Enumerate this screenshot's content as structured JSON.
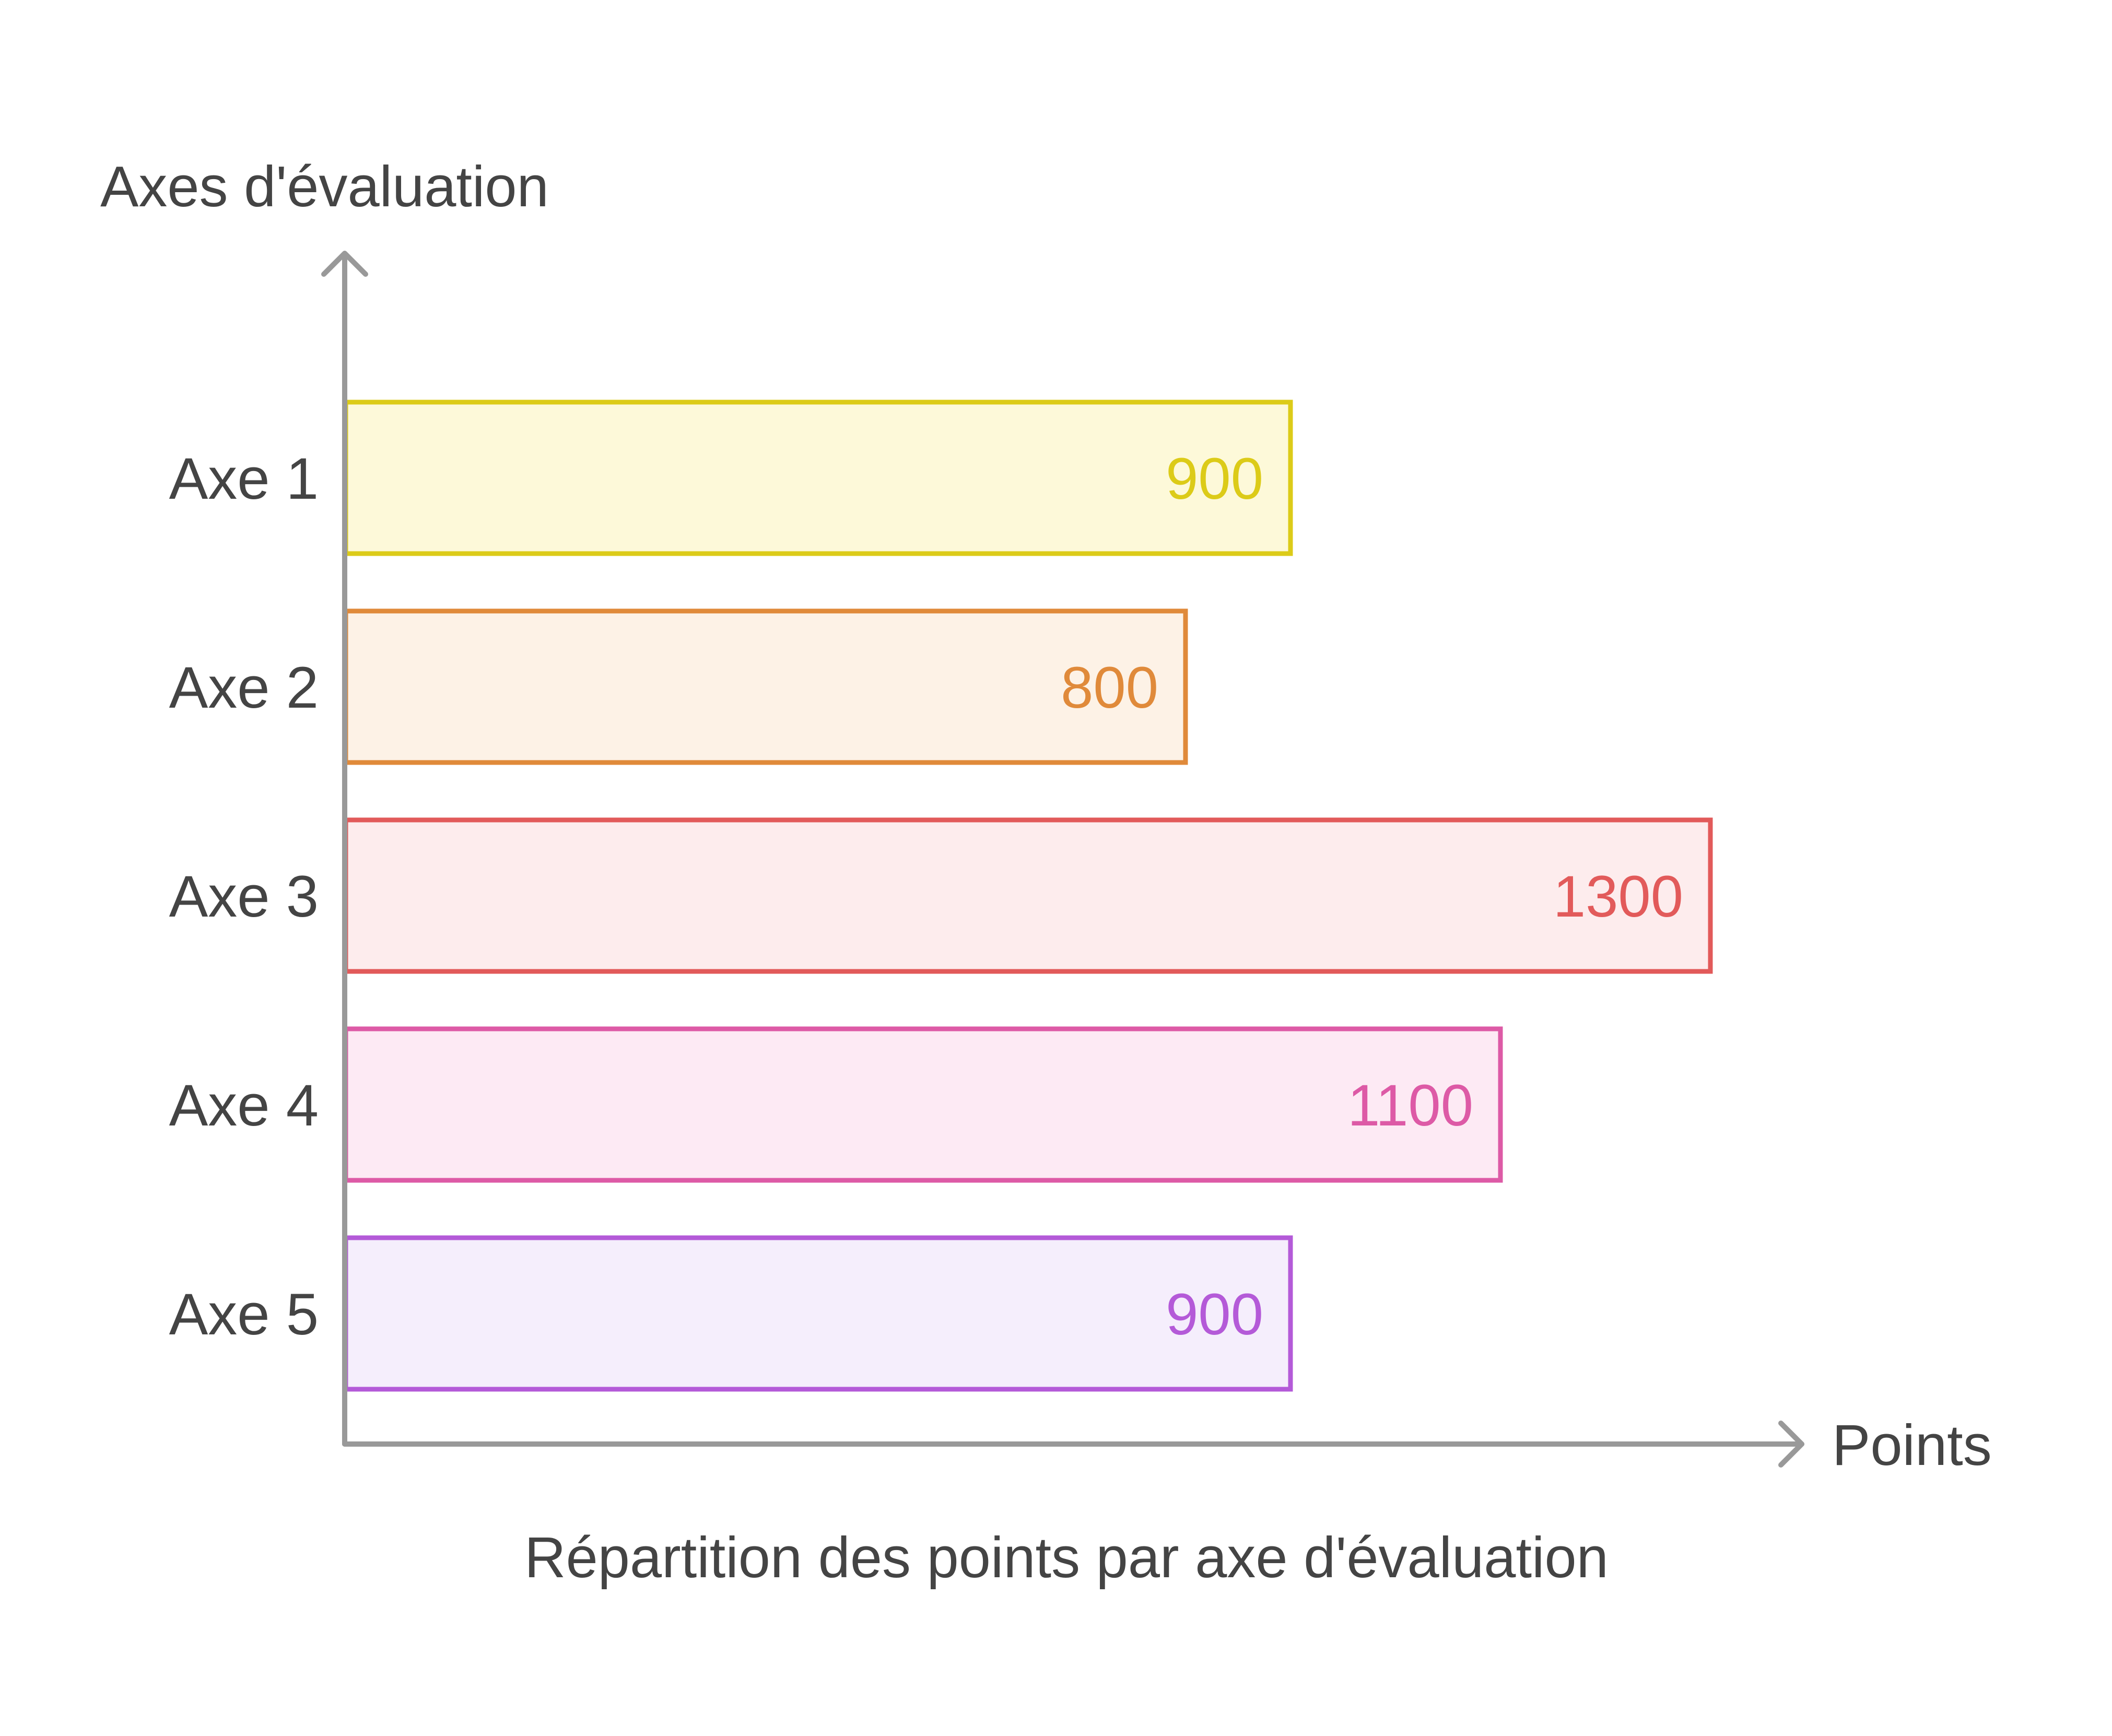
{
  "chart_data": {
    "type": "bar",
    "orientation": "horizontal",
    "title": "Répartition des points par axe d'évaluation",
    "xlabel": "Points",
    "ylabel": "Axes d'évaluation",
    "categories": [
      "Axe 1",
      "Axe 2",
      "Axe 3",
      "Axe 4",
      "Axe 5"
    ],
    "values": [
      900,
      800,
      1300,
      1100,
      900
    ],
    "colors": [
      {
        "stroke": "#dccb18",
        "fill": "#fdf9d9"
      },
      {
        "stroke": "#e08a3a",
        "fill": "#fdf2e6"
      },
      {
        "stroke": "#e25a5a",
        "fill": "#fdeced"
      },
      {
        "stroke": "#dd5aa6",
        "fill": "#fdeaf4"
      },
      {
        "stroke": "#b45ad8",
        "fill": "#f5eefc"
      }
    ],
    "grid": false,
    "legend": "none",
    "axis_color": "#999999",
    "text_color": "#444444"
  }
}
